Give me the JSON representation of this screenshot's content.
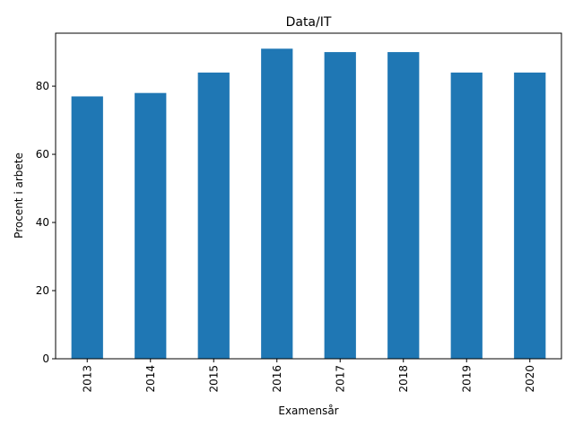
{
  "chart_data": {
    "type": "bar",
    "title": "Data/IT",
    "xlabel": "Examensår",
    "ylabel": "Procent i arbete",
    "categories": [
      "2013",
      "2014",
      "2015",
      "2016",
      "2017",
      "2018",
      "2019",
      "2020"
    ],
    "values": [
      77,
      78,
      84,
      91,
      90,
      90,
      84,
      84
    ],
    "ylim": [
      0,
      95.55
    ],
    "yticks": [
      0,
      20,
      40,
      60,
      80
    ],
    "grid": false,
    "legend": "none",
    "bar_color": "#1f77b4"
  }
}
